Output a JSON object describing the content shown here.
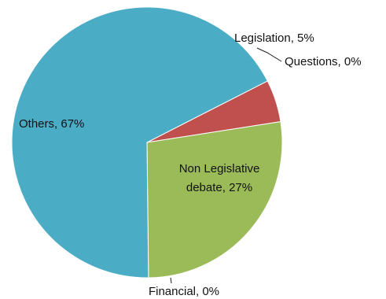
{
  "chart_data": {
    "type": "pie",
    "title": "",
    "start_angle_deg": 63,
    "direction": "clockwise",
    "legend": "none",
    "slices": [
      {
        "name": "Legislation",
        "value": 5,
        "label": "Legislation, 5%",
        "color": "#C0504D"
      },
      {
        "name": "Questions",
        "value": 0,
        "label": "Questions, 0%",
        "color": "#8064A2"
      },
      {
        "name": "Non Legislative debate",
        "value": 27,
        "label_lines": [
          "Non Legislative",
          "debate, 27%"
        ],
        "color": "#9BBB59"
      },
      {
        "name": "Financial",
        "value": 0,
        "label": "Financial, 0%",
        "color": "#F79646"
      },
      {
        "name": "Others",
        "value": 67,
        "label": "Others, 67%",
        "color": "#4BACC6"
      }
    ]
  }
}
